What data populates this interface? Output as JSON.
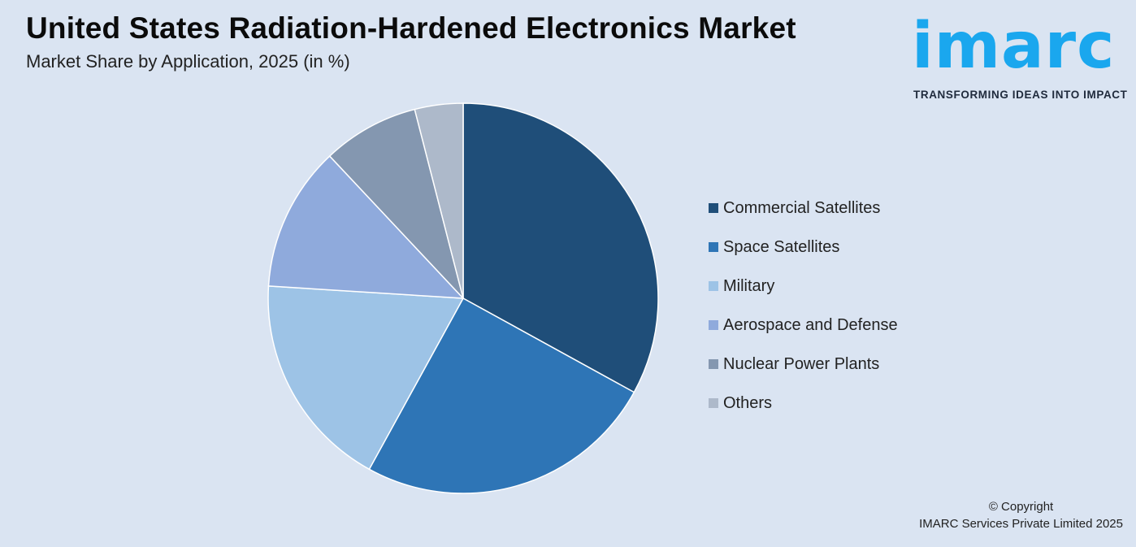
{
  "header": {
    "title": "United States Radiation-Hardened Electronics Market",
    "subtitle": "Market Share by Application, 2025 (in %)"
  },
  "logo": {
    "word": "imarc",
    "tagline": "TRANSFORMING IDEAS INTO IMPACT",
    "color": "#1aa7ee"
  },
  "footer": {
    "copyright_line1": "© Copyright",
    "copyright_line2": "IMARC Services Private Limited 2025"
  },
  "chart_data": {
    "type": "pie",
    "title": "United States Radiation-Hardened Electronics Market",
    "subtitle": "Market Share by Application, 2025 (in %)",
    "legend_position": "right",
    "categories": [
      "Commercial Satellites",
      "Space Satellites",
      "Military",
      "Aerospace and Defense",
      "Nuclear Power Plants",
      "Others"
    ],
    "values": [
      33,
      25,
      18,
      12,
      8,
      4
    ],
    "colors": [
      "#1f4e79",
      "#2e75b6",
      "#9dc3e6",
      "#8faadc",
      "#8497b0",
      "#adb9ca"
    ],
    "start_angle_deg": 0,
    "direction": "clockwise"
  }
}
